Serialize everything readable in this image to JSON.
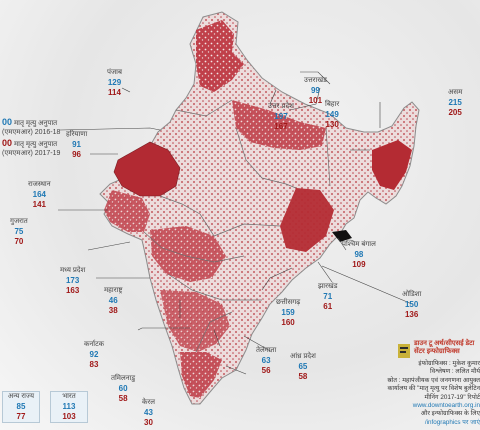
{
  "colors": {
    "value_2016_18": "#1f78b4",
    "value_2017_19": "#a01818",
    "map_fill": "#b8323a",
    "map_base": "#f1ecec"
  },
  "legend": {
    "row1_num": "00",
    "row1_text": "मातृ मृत्यु अनुपात (एमएमआर) 2016-18",
    "row2_num": "00",
    "row2_text": "मातृ मृत्यु अनुपात (एमएमआर) 2017-19"
  },
  "states": [
    {
      "key": "punjab",
      "name": "पंजाब",
      "v1": "129",
      "v2": "114"
    },
    {
      "key": "haryana",
      "name": "हरियाणा",
      "v1": "91",
      "v2": "96"
    },
    {
      "key": "rajasthan",
      "name": "राजस्थान",
      "v1": "164",
      "v2": "141"
    },
    {
      "key": "gujarat",
      "name": "गुजरात",
      "v1": "75",
      "v2": "70"
    },
    {
      "key": "madhya",
      "name": "मध्य प्रदेश",
      "v1": "173",
      "v2": "163"
    },
    {
      "key": "maharashtra",
      "name": "महाराष्ट्र",
      "v1": "46",
      "v2": "38"
    },
    {
      "key": "karnataka",
      "name": "कर्नाटक",
      "v1": "92",
      "v2": "83"
    },
    {
      "key": "tamilnadu",
      "name": "तमिलनाडु",
      "v1": "60",
      "v2": "58"
    },
    {
      "key": "kerala",
      "name": "केरल",
      "v1": "43",
      "v2": "30"
    },
    {
      "key": "telangana",
      "name": "तेलंगाना",
      "v1": "63",
      "v2": "56"
    },
    {
      "key": "andhra",
      "name": "आंध्र प्रदेश",
      "v1": "65",
      "v2": "58"
    },
    {
      "key": "chhattisgarh",
      "name": "छत्तीसगढ़",
      "v1": "159",
      "v2": "160"
    },
    {
      "key": "jharkhand",
      "name": "झारखंड",
      "v1": "71",
      "v2": "61"
    },
    {
      "key": "odisha",
      "name": "ओडिशा",
      "v1": "150",
      "v2": "136"
    },
    {
      "key": "westbengal",
      "name": "पश्चिम बंगाल",
      "v1": "98",
      "v2": "109"
    },
    {
      "key": "bihar",
      "name": "बिहार",
      "v1": "149",
      "v2": "130"
    },
    {
      "key": "uttarpradesh",
      "name": "उत्तर प्रदेश",
      "v1": "197",
      "v2": "167"
    },
    {
      "key": "uttarakhand",
      "name": "उत्तराखंड",
      "v1": "99",
      "v2": "101"
    },
    {
      "key": "assam",
      "name": "असम",
      "v1": "215",
      "v2": "205"
    }
  ],
  "totals": [
    {
      "key": "others",
      "name": "अन्य राज्य",
      "v1": "85",
      "v2": "77"
    },
    {
      "key": "india",
      "name": "भारत",
      "v1": "113",
      "v2": "103"
    }
  ],
  "credit": {
    "brand1": "डाउन टू अर्थ/सीएसई डेटा",
    "brand2": "सेंटर इन्फोग्राफिक्स",
    "line1": "इंफोग्राफिक्स : मुकेश कुमार",
    "line2": "विश्लेषण : ललित मौर्य",
    "line3": "स्रोत : महापंजीयक एवं जनगणना आयुक्त",
    "line4": "कार्यालय की \"मातृ मृत्यु पर विशेष बुलेटिन",
    "line5": "मीनिंग 2017-19\" रिपोर्ट",
    "line6": "www.downtoearth.org.in",
    "line7": "और इन्फोग्राफिक्स के लिए",
    "line8": "/infographics पर जाएं"
  }
}
